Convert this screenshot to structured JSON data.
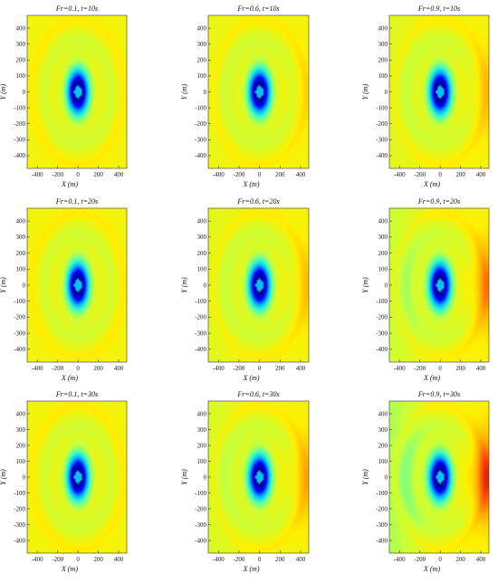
{
  "chart_data": {
    "type": "heatmap",
    "layout": {
      "rows": 3,
      "cols": 3
    },
    "xlabel": "X (m)",
    "ylabel": "Y (m)",
    "xlim": [
      -500,
      480
    ],
    "ylim": [
      -480,
      480
    ],
    "xticks": [
      -400,
      -200,
      0,
      200,
      400
    ],
    "yticks": [
      -400,
      -300,
      -200,
      -100,
      0,
      100,
      200,
      300,
      400
    ],
    "colormap": [
      "#00008f",
      "#0000ff",
      "#00b4ff",
      "#40ffc0",
      "#c8ff38",
      "#fff000",
      "#ffb000",
      "#ff5000",
      "#c00000"
    ],
    "grid": false,
    "panels": [
      {
        "title": "Fr=0.1, t=10s",
        "Fr": 0.1,
        "t": 10
      },
      {
        "title": "Fr=0.6, t=10s",
        "Fr": 0.6,
        "t": 10
      },
      {
        "title": "Fr=0.9, t=10s",
        "Fr": 0.9,
        "t": 10
      },
      {
        "title": "Fr=0.1, t=20s",
        "Fr": 0.1,
        "t": 20
      },
      {
        "title": "Fr=0.6, t=20s",
        "Fr": 0.6,
        "t": 20
      },
      {
        "title": "Fr=0.9, t=20s",
        "Fr": 0.9,
        "t": 20
      },
      {
        "title": "Fr=0.1, t=30s",
        "Fr": 0.1,
        "t": 30
      },
      {
        "title": "Fr=0.6, t=30s",
        "Fr": 0.6,
        "t": 30
      },
      {
        "title": "Fr=0.9, t=30s",
        "Fr": 0.9,
        "t": 30
      }
    ]
  }
}
